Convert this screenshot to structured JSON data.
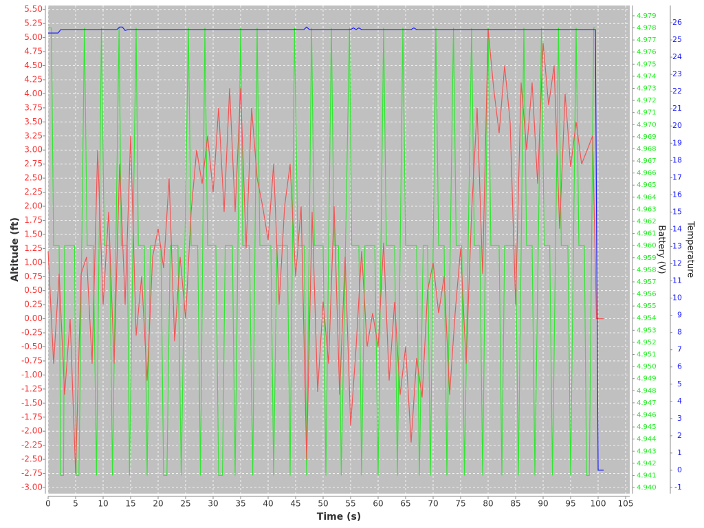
{
  "chart_data": {
    "type": "line",
    "xlabel": "Time (s)",
    "ylabel": "Altitude (ft)",
    "y2label": "Battery (V)",
    "y3label": "Temperature",
    "grid": true,
    "xlim": [
      0,
      105.75
    ],
    "xticks": [
      0,
      5,
      10,
      15,
      20,
      25,
      30,
      35,
      40,
      45,
      50,
      55,
      60,
      65,
      70,
      75,
      80,
      85,
      90,
      95,
      100,
      105
    ],
    "ylim": [
      -3.11,
      5.57
    ],
    "yticks": [
      {
        "value": -3,
        "label": "-3.00"
      },
      -2.75,
      {
        "value": -2.5,
        "label": "-2.50"
      },
      -2.25,
      {
        "value": -2,
        "label": "-2.00"
      },
      -1.75,
      {
        "value": -1.5,
        "label": "-1.50"
      },
      -1.25,
      {
        "value": -1,
        "label": "-1.00"
      },
      -0.75,
      {
        "value": -0.5,
        "label": "-0.50"
      },
      -0.25,
      {
        "value": 0,
        "label": "0.00"
      },
      0.25,
      {
        "value": 0.5,
        "label": "0.50"
      },
      0.75,
      {
        "value": 1,
        "label": "1.00"
      },
      1.25,
      {
        "value": 1.5,
        "label": "1.50"
      },
      1.75,
      {
        "value": 2,
        "label": "2.00"
      },
      2.25,
      {
        "value": 2.5,
        "label": "2.50"
      },
      2.75,
      {
        "value": 3,
        "label": "3.00"
      },
      3.25,
      {
        "value": 3.5,
        "label": "3.50"
      },
      3.75,
      {
        "value": 4,
        "label": "4.00"
      },
      4.25,
      {
        "value": 4.5,
        "label": "4.50"
      },
      4.75,
      {
        "value": 5,
        "label": "5.00"
      },
      5.25,
      {
        "value": 5.5,
        "label": "5.50"
      }
    ],
    "y2lim": [
      4.93949,
      4.97985
    ],
    "y2ticks": [
      {
        "value": 4.94,
        "label": "4.940"
      },
      4.941,
      4.942,
      4.943,
      4.944,
      4.945,
      4.946,
      4.947,
      4.948,
      4.949,
      {
        "value": 4.95,
        "label": "4.950"
      },
      4.951,
      4.952,
      4.953,
      4.954,
      4.955,
      4.956,
      4.957,
      4.958,
      4.959,
      {
        "value": 4.96,
        "label": "4.960"
      },
      4.961,
      4.962,
      4.963,
      4.964,
      4.965,
      4.966,
      4.967,
      4.968,
      4.969,
      {
        "value": 4.97,
        "label": "4.970"
      },
      4.971,
      4.972,
      4.973,
      4.974,
      4.975,
      4.976,
      4.977,
      4.978,
      4.979
    ],
    "y3lim": [
      -1.36,
      27.0
    ],
    "y3ticks": [
      -1,
      0,
      1,
      2,
      3,
      4,
      5,
      6,
      7,
      8,
      9,
      10,
      11,
      12,
      13,
      14,
      15,
      16,
      17,
      18,
      19,
      20,
      21,
      22,
      23,
      24,
      25,
      26
    ],
    "y1color": "#ff3333",
    "y2color": "#22ee22",
    "y3color": "#1a1aff",
    "series": [
      {
        "axis": "y2",
        "color": "#33e633",
        "x": [
          0,
          0.6,
          1,
          2,
          2.3,
          2.8,
          3,
          4.8,
          5.1,
          5.6,
          6.6,
          7.1,
          8.2,
          8.8,
          9.7,
          10.2,
          11.2,
          11.7,
          12.9,
          13.3,
          14.4,
          14.8,
          16.0,
          16.4,
          17.5,
          18.0,
          18.6,
          20.5,
          21.0,
          21.6,
          22.2,
          23.6,
          24.2,
          25.5,
          26.0,
          27.2,
          27.7,
          28.5,
          29.0,
          30.5,
          31.0,
          31.7,
          32.2,
          33.5,
          34.0,
          35.0,
          35.4,
          36.6,
          37.2,
          38.0,
          38.5,
          40.5,
          41.0,
          41.6,
          43.5,
          44.0,
          44.8,
          45.4,
          46.6,
          47.0,
          47.9,
          48.4,
          50.0,
          50.5,
          51.5,
          52.0,
          52.8,
          53.3,
          54.8,
          55.2,
          56.5,
          57.0,
          57.6,
          59.4,
          60.0,
          61.0,
          61.5,
          63.0,
          63.5,
          64.5,
          65.0,
          67.0,
          67.5,
          68.2,
          69.0,
          69.5,
          70.5,
          71.0,
          72.0,
          72.5,
          73.7,
          74.2,
          75.2,
          75.7,
          77.0,
          77.5,
          78.5,
          79.0,
          80.0,
          80.5,
          82.0,
          82.5,
          83.0,
          85.0,
          85.5,
          86.5,
          87.0,
          88.0,
          88.5,
          89.7,
          90.2,
          91.2,
          91.7,
          92.8,
          93.3,
          94.5,
          95.0,
          96.0,
          96.5,
          97.5,
          97.9,
          98.4,
          99.2,
          99.5
        ],
        "values": [
          4.978,
          4.978,
          4.96,
          4.96,
          4.941,
          4.941,
          4.96,
          4.96,
          4.941,
          4.941,
          4.978,
          4.96,
          4.96,
          4.941,
          4.978,
          4.96,
          4.96,
          4.941,
          4.978,
          4.96,
          4.96,
          4.941,
          4.978,
          4.96,
          4.96,
          4.941,
          4.96,
          4.96,
          4.941,
          4.941,
          4.96,
          4.96,
          4.941,
          4.978,
          4.96,
          4.96,
          4.941,
          4.978,
          4.96,
          4.96,
          4.941,
          4.941,
          4.96,
          4.96,
          4.941,
          4.978,
          4.96,
          4.96,
          4.941,
          4.978,
          4.96,
          4.96,
          4.941,
          4.96,
          4.96,
          4.941,
          4.978,
          4.96,
          4.96,
          4.941,
          4.978,
          4.96,
          4.96,
          4.941,
          4.978,
          4.96,
          4.96,
          4.941,
          4.978,
          4.96,
          4.96,
          4.941,
          4.96,
          4.96,
          4.941,
          4.978,
          4.96,
          4.96,
          4.941,
          4.978,
          4.96,
          4.96,
          4.941,
          4.96,
          4.96,
          4.941,
          4.978,
          4.96,
          4.96,
          4.941,
          4.978,
          4.96,
          4.96,
          4.941,
          4.978,
          4.96,
          4.96,
          4.941,
          4.978,
          4.96,
          4.96,
          4.941,
          4.96,
          4.96,
          4.941,
          4.978,
          4.96,
          4.96,
          4.941,
          4.978,
          4.96,
          4.96,
          4.941,
          4.978,
          4.96,
          4.96,
          4.941,
          4.978,
          4.96,
          4.96,
          4.941,
          4.941,
          4.978,
          4.978
        ]
      },
      {
        "axis": "y1",
        "color": "#f25555",
        "x": [
          0,
          1,
          2,
          3,
          4,
          5,
          6,
          7,
          8,
          9,
          10,
          11,
          12,
          13,
          14,
          15,
          16,
          17,
          18,
          19,
          20,
          21,
          22,
          23,
          24,
          25,
          26,
          27,
          28,
          29,
          30,
          31,
          32,
          33,
          34,
          35,
          36,
          37,
          38,
          39,
          40,
          41,
          42,
          43,
          44,
          45,
          46,
          47,
          48,
          49,
          50,
          51,
          52,
          53,
          54,
          55,
          56,
          57,
          58,
          59,
          60,
          61,
          62,
          63,
          64,
          65,
          66,
          67,
          68,
          69,
          70,
          71,
          72,
          73,
          74,
          75,
          76,
          77,
          78,
          79,
          80,
          81,
          82,
          83,
          84,
          85,
          86,
          87,
          88,
          89,
          90,
          91,
          92,
          93,
          94,
          95,
          96,
          97,
          98,
          99,
          99.7,
          101
        ],
        "values": [
          1.2,
          -0.8,
          0.8,
          -1.35,
          0,
          -2.75,
          0.8,
          1.1,
          -0.8,
          3,
          0.25,
          1.9,
          -0.8,
          2.75,
          0.25,
          3.25,
          -0.3,
          0.75,
          -1.1,
          1.1,
          1.6,
          0.9,
          2.5,
          -0.4,
          1.1,
          0,
          1.9,
          3,
          2.4,
          3.25,
          2.25,
          3.75,
          1.9,
          4.1,
          1.9,
          4.1,
          1.25,
          3.75,
          2.5,
          2,
          1.4,
          2.75,
          0.25,
          2,
          2.75,
          0.75,
          2,
          -2.5,
          1.9,
          -1.3,
          0.3,
          -0.8,
          2,
          -1.35,
          1.1,
          -1.9,
          -0.5,
          1.2,
          -0.5,
          0.1,
          -0.5,
          1.35,
          -1.1,
          0.3,
          -1.35,
          -0.5,
          -2.2,
          -0.7,
          -1.4,
          0.5,
          1,
          0.1,
          0.75,
          -1.35,
          0.1,
          1.25,
          -0.8,
          1.9,
          3.75,
          0.8,
          5.15,
          4.1,
          3.3,
          4.5,
          3.5,
          0.25,
          4.2,
          3,
          4.2,
          2.4,
          4.9,
          3.8,
          4.5,
          1.6,
          4,
          2.7,
          3.5,
          2.75,
          3,
          3.25,
          0,
          0
        ]
      },
      {
        "axis": "y3",
        "color": "#1a1aff",
        "x": [
          0,
          1.8,
          2.3,
          12.5,
          13,
          13.5,
          14,
          14.5,
          46.5,
          47,
          47.5,
          55,
          55.5,
          56,
          56.5,
          57,
          66,
          66.5,
          67,
          99.5,
          100,
          101
        ],
        "values": [
          25.4,
          25.4,
          25.6,
          25.6,
          25.75,
          25.75,
          25.55,
          25.6,
          25.6,
          25.75,
          25.6,
          25.6,
          25.7,
          25.6,
          25.7,
          25.6,
          25.6,
          25.7,
          25.6,
          25.6,
          0,
          0
        ]
      }
    ]
  }
}
